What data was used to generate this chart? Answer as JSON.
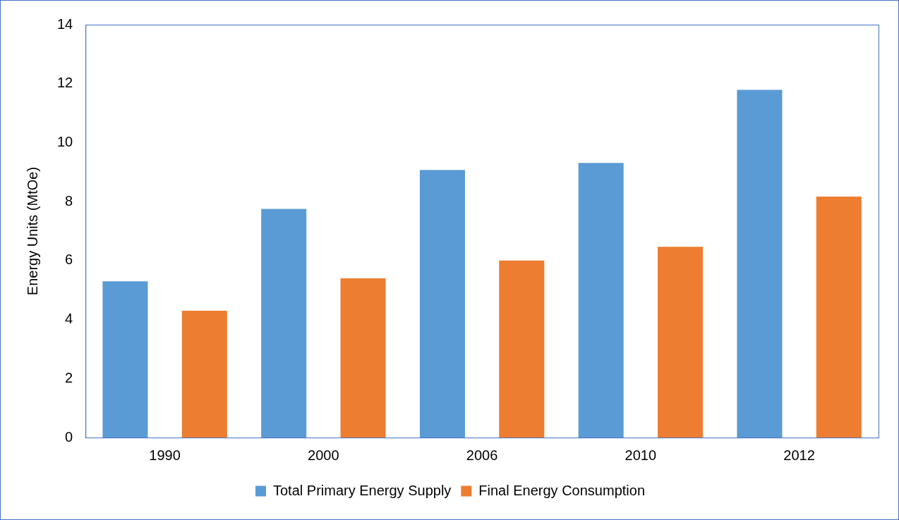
{
  "chart_data": {
    "type": "bar",
    "ylabel": "Energy Units (MtOe)",
    "categories": [
      "1990",
      "2000",
      "2006",
      "2010",
      "2012"
    ],
    "series": [
      {
        "name": "Total Primary Energy Supply",
        "color": "#5b9bd5",
        "values": [
          5.3,
          7.75,
          9.07,
          9.31,
          11.79
        ]
      },
      {
        "name": "Final Energy Consumption",
        "color": "#ed7d31",
        "values": [
          4.3,
          5.4,
          6.0,
          6.47,
          8.17
        ]
      }
    ],
    "ylim": [
      0,
      14
    ],
    "yticks": [
      0,
      2,
      4,
      6,
      8,
      10,
      12,
      14
    ],
    "grid": false,
    "legend": "bottom"
  }
}
